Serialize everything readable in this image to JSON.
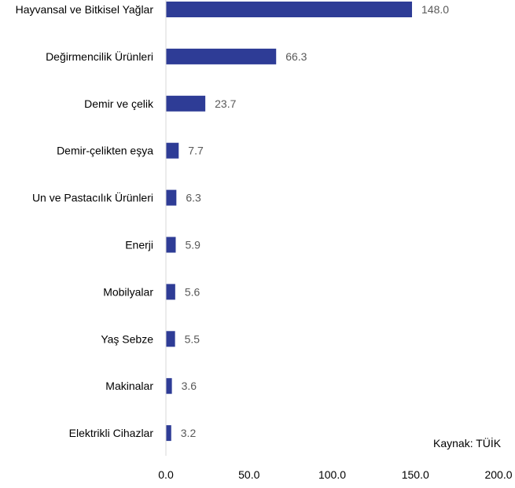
{
  "chart_data": {
    "type": "bar",
    "orientation": "horizontal",
    "categories": [
      "Hayvansal ve Bitkisel Yağlar",
      "Değirmencilik Ürünleri",
      "Demir ve çelik",
      "Demir-çelikten eşya",
      "Un ve Pastacılık Ürünleri",
      "Enerji",
      "Mobilyalar",
      "Yaş Sebze",
      "Makinalar",
      "Elektrikli Cihazlar"
    ],
    "values": [
      148.0,
      66.3,
      23.7,
      7.7,
      6.3,
      5.9,
      5.6,
      5.5,
      3.6,
      3.2
    ],
    "value_labels": [
      "148.0",
      "66.3",
      "23.7",
      "7.7",
      "6.3",
      "5.9",
      "5.6",
      "5.5",
      "3.6",
      "3.2"
    ],
    "x_ticks": [
      0,
      50,
      100,
      150,
      200
    ],
    "x_tick_labels": [
      "0.0",
      "50.0",
      "100.0",
      "150.0",
      "200.0"
    ],
    "xlim": [
      0,
      200
    ],
    "grid": false,
    "bar_color": "#2E3C96",
    "source_note": "Kaynak: TÜİK"
  }
}
